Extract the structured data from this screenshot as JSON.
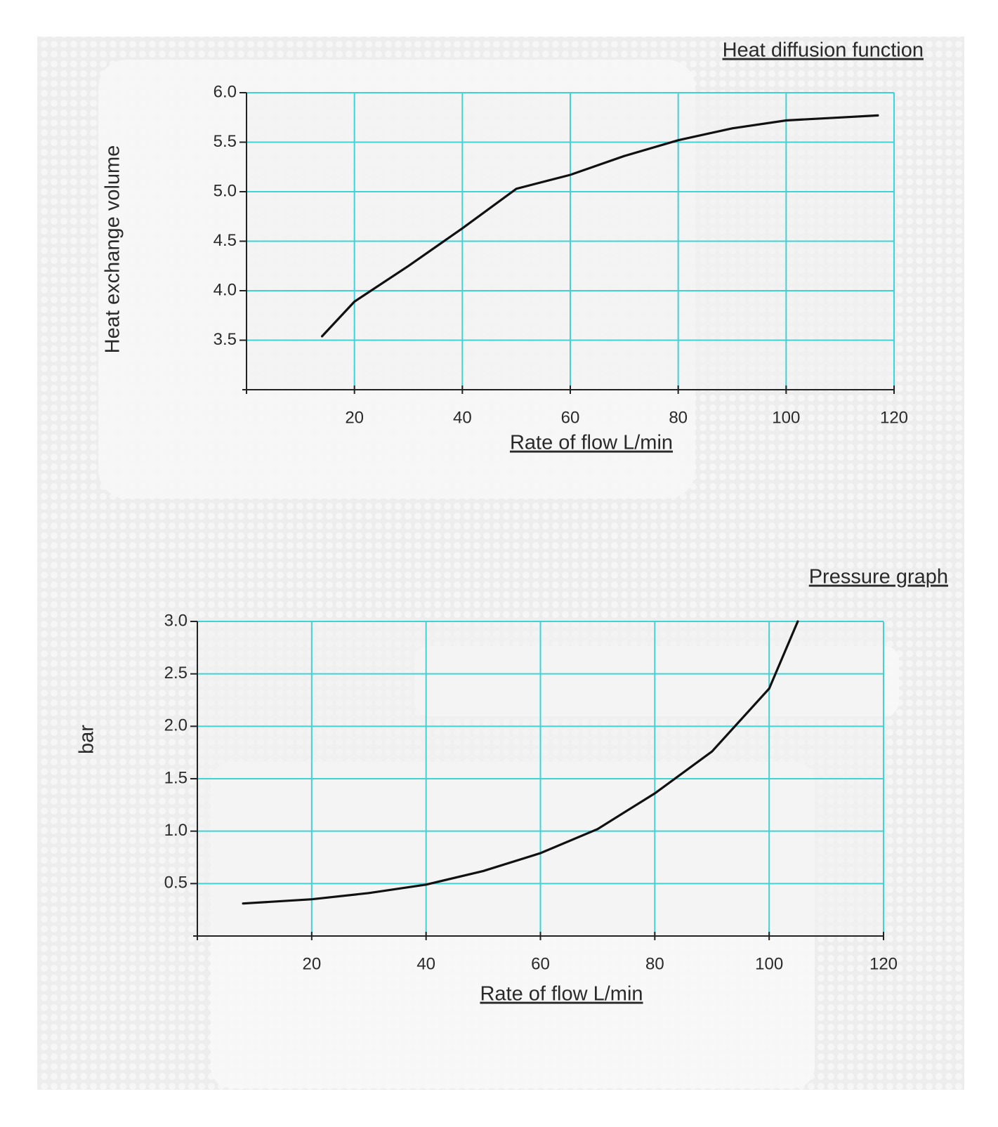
{
  "chart_data": [
    {
      "type": "line",
      "title": "Heat diffusion function",
      "x_label": "Rate of flow L/min",
      "y_label": "Heat exchange volume",
      "x": [
        14,
        20,
        30,
        40,
        50,
        60,
        70,
        80,
        90,
        100,
        110,
        117
      ],
      "values": [
        3.54,
        3.89,
        4.25,
        4.63,
        5.03,
        5.17,
        5.36,
        5.52,
        5.64,
        5.72,
        5.75,
        5.77
      ],
      "color": "#111111",
      "grid_color": "#3fd3d6",
      "xlim": [
        0,
        120
      ],
      "xticks": [
        20,
        40,
        60,
        80,
        100,
        120
      ],
      "ylim": [
        3.0,
        6.0
      ],
      "yticks": [
        3.5,
        {
          "value": 4,
          "label": "4.0"
        },
        4.5,
        {
          "value": 5,
          "label": "5.0"
        },
        5.5,
        {
          "value": 6,
          "label": "6.0"
        }
      ],
      "grid": true
    },
    {
      "type": "line",
      "title": "Pressure graph",
      "x_label": "Rate of flow L/min",
      "y_label": "bar",
      "x": [
        8,
        20,
        30,
        40,
        50,
        60,
        70,
        80,
        90,
        100,
        105
      ],
      "values": [
        0.31,
        0.35,
        0.41,
        0.49,
        0.62,
        0.79,
        1.02,
        1.36,
        1.76,
        2.36,
        3.0
      ],
      "color": "#111111",
      "grid_color": "#3fd3d6",
      "xlim": [
        0,
        120
      ],
      "xticks": [
        20,
        40,
        60,
        80,
        100,
        120
      ],
      "ylim": [
        0,
        3
      ],
      "yticks": [
        0.5,
        {
          "value": 1,
          "label": "1.0"
        },
        1.5,
        {
          "value": 2,
          "label": "2.0"
        },
        2.5,
        {
          "value": 3,
          "label": "3.0"
        }
      ],
      "grid": true
    }
  ]
}
